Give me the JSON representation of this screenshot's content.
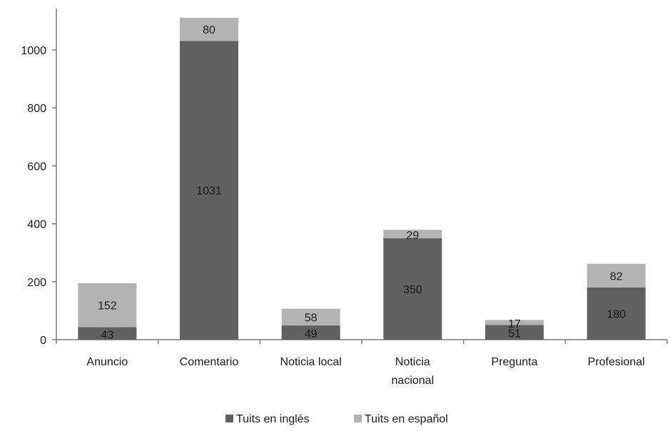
{
  "chart_data": {
    "type": "bar",
    "stacked": true,
    "categories": [
      [
        "Anuncio"
      ],
      [
        "Comentario"
      ],
      [
        "Noticia  local"
      ],
      [
        "Noticia",
        "nacional"
      ],
      [
        "Pregunta"
      ],
      [
        "Profesional"
      ]
    ],
    "series": [
      {
        "name": "Tuits en inglés",
        "color": "#606060",
        "values": [
          43,
          1031,
          49,
          350,
          51,
          180
        ]
      },
      {
        "name": "Tuits en español",
        "color": "#b3b3b3",
        "values": [
          152,
          80,
          58,
          29,
          17,
          82
        ]
      }
    ],
    "ylim": [
      0,
      1100
    ],
    "yticks": [
      0,
      200,
      400,
      600,
      800,
      1000
    ],
    "grid": false,
    "legend": "bottom"
  }
}
